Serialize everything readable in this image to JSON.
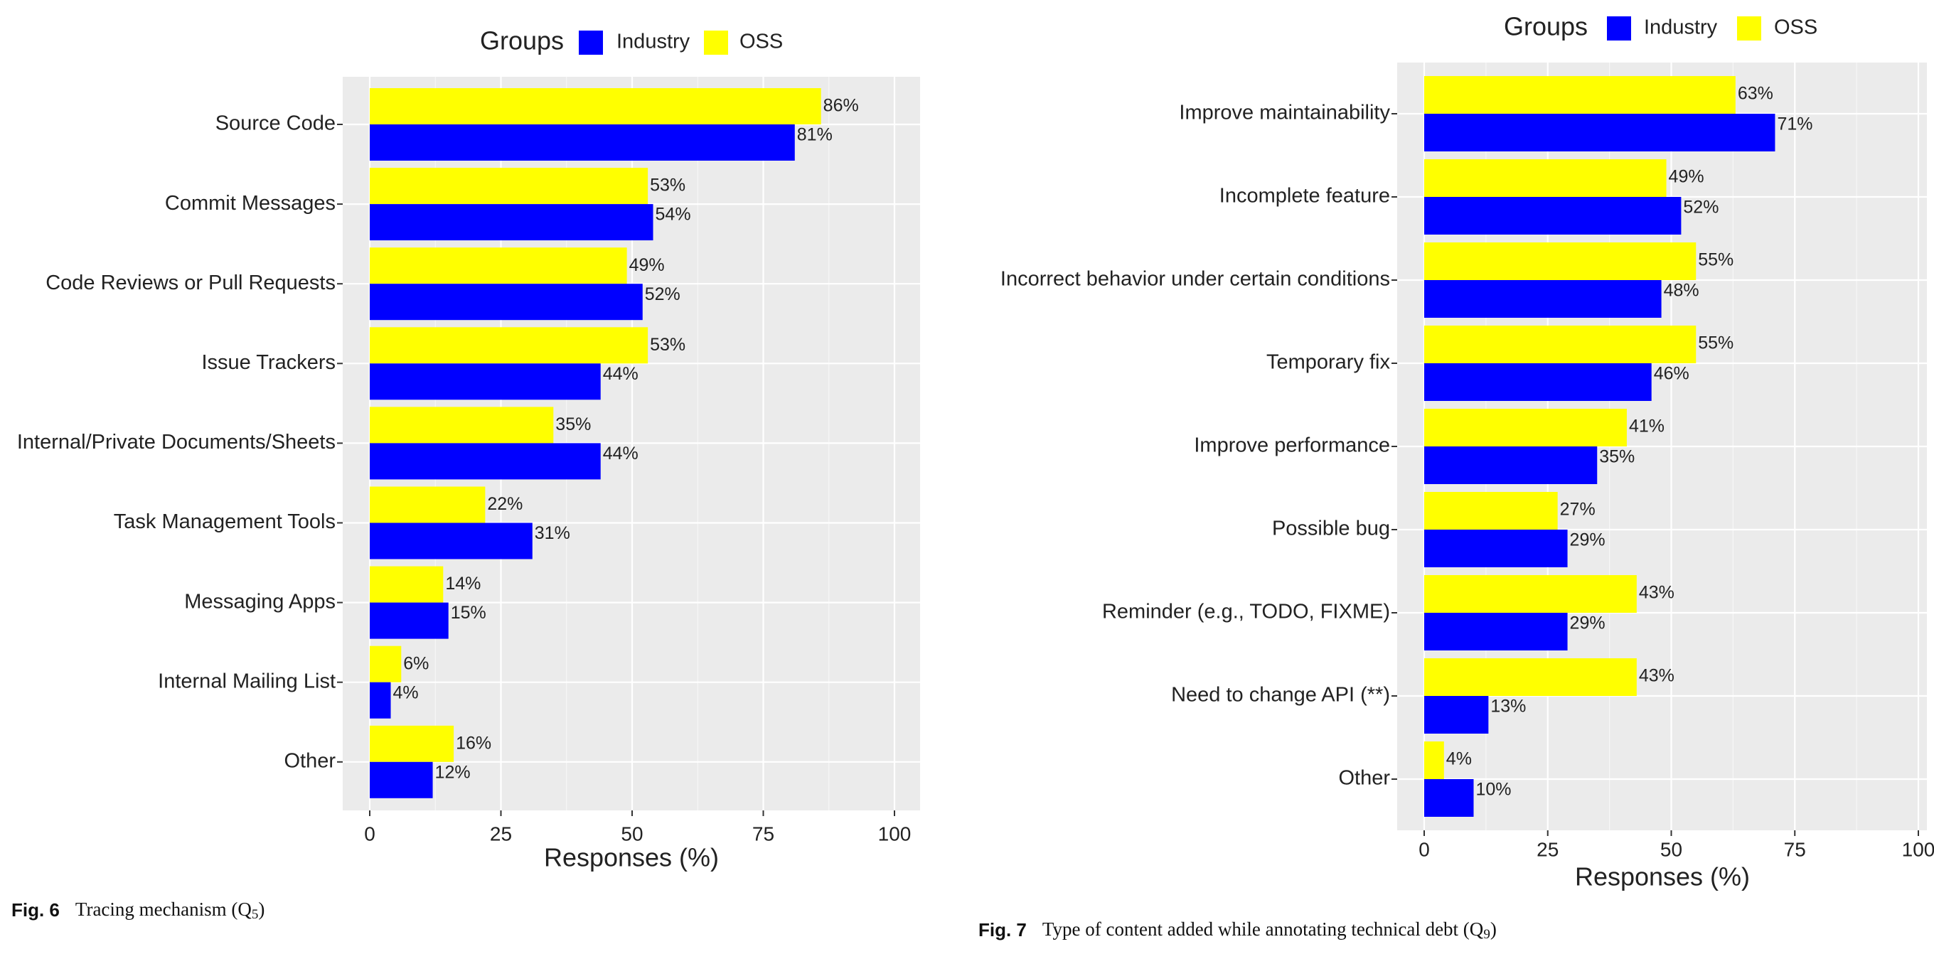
{
  "chart_data": [
    {
      "type": "bar",
      "orientation": "horizontal",
      "legend_title": "Groups",
      "legend_position": "top",
      "categories": [
        "Source Code",
        "Commit Messages",
        "Code Reviews or Pull Requests",
        "Issue Trackers",
        "Internal/Private Documents/Sheets",
        "Task Management Tools",
        "Messaging Apps",
        "Internal Mailing List",
        "Other"
      ],
      "series": [
        {
          "name": "OSS",
          "color": "#ffff00",
          "values": [
            86,
            53,
            49,
            53,
            35,
            22,
            14,
            6,
            16
          ]
        },
        {
          "name": "Industry",
          "color": "#0000ff",
          "values": [
            81,
            54,
            52,
            44,
            44,
            31,
            15,
            4,
            12
          ]
        }
      ],
      "data_labels": {
        "OSS": [
          "86%",
          "53%",
          "49%",
          "53%",
          "35%",
          "22%",
          "14%",
          "6%",
          "16%"
        ],
        "Industry": [
          "81%",
          "54%",
          "52%",
          "44%",
          "44%",
          "31%",
          "15%",
          "4%",
          "12%"
        ]
      },
      "xlabel": "Responses (%)",
      "xlim": [
        0,
        100
      ],
      "ticks": [
        "0",
        "25",
        "50",
        "75",
        "100"
      ],
      "grid": true,
      "caption_label": "Fig. 6",
      "caption_text": "Tracing mechanism (Q",
      "caption_sub": "5",
      "caption_close": ")"
    },
    {
      "type": "bar",
      "orientation": "horizontal",
      "legend_title": "Groups",
      "legend_position": "top",
      "categories": [
        "Improve maintainability",
        "Incomplete feature",
        "Incorrect behavior under certain conditions",
        "Temporary fix",
        "Improve performance",
        "Possible bug",
        "Reminder (e.g., TODO, FIXME)",
        "Need to change API (**)",
        "Other"
      ],
      "series": [
        {
          "name": "OSS",
          "color": "#ffff00",
          "values": [
            63,
            49,
            55,
            55,
            41,
            27,
            43,
            43,
            4
          ]
        },
        {
          "name": "Industry",
          "color": "#0000ff",
          "values": [
            71,
            52,
            48,
            46,
            35,
            29,
            29,
            13,
            10
          ]
        }
      ],
      "data_labels": {
        "OSS": [
          "63%",
          "49%",
          "55%",
          "55%",
          "41%",
          "27%",
          "43%",
          "43%",
          "4%"
        ],
        "Industry": [
          "71%",
          "52%",
          "48%",
          "46%",
          "35%",
          "29%",
          "29%",
          "13%",
          "10%"
        ]
      },
      "xlabel": "Responses (%)",
      "xlim": [
        0,
        100
      ],
      "ticks": [
        "0",
        "25",
        "50",
        "75",
        "100"
      ],
      "grid": true,
      "caption_label": "Fig. 7",
      "caption_text": "Type of content added while annotating technical debt (Q",
      "caption_sub": "9",
      "caption_close": ")"
    }
  ],
  "legend_items": [
    {
      "name": "Industry",
      "color": "#0000ff"
    },
    {
      "name": "OSS",
      "color": "#ffff00"
    }
  ]
}
